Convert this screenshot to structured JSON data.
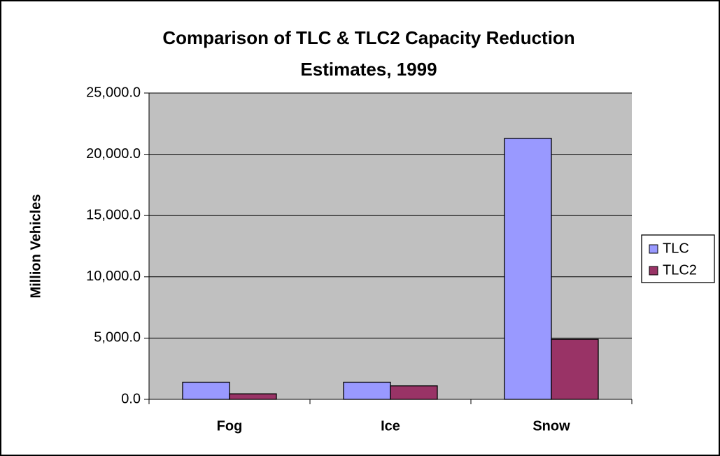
{
  "chart_data": {
    "type": "bar",
    "title": "Comparison of TLC & TLC2 Capacity Reduction Estimates, 1999",
    "y_label": "Million Vehicles",
    "categories": [
      "Fog",
      "Ice",
      "Snow"
    ],
    "series": [
      {
        "name": "TLC",
        "color": "#9999ff",
        "values": [
          1400,
          1400,
          21300
        ]
      },
      {
        "name": "TLC2",
        "color": "#993366",
        "values": [
          450,
          1100,
          4900
        ]
      }
    ],
    "ylim": [
      0,
      25000
    ],
    "yticks": [
      {
        "value": 0,
        "label": "0.0"
      },
      {
        "value": 5000,
        "label": "5,000.0"
      },
      {
        "value": 10000,
        "label": "10,000.0"
      },
      {
        "value": 15000,
        "label": "15,000.0"
      },
      {
        "value": 20000,
        "label": "20,000.0"
      },
      {
        "value": 25000,
        "label": "25,000.0"
      }
    ],
    "grid": true,
    "legend": "right"
  }
}
